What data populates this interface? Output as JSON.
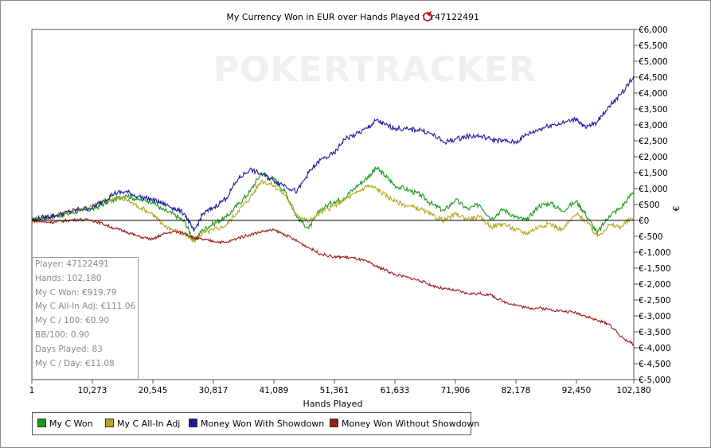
{
  "chart_title": "My Currency Won in EUR over Hands Played for",
  "player_id": "47122491",
  "watermark": "POKERTRACKER",
  "x_axis_label": "Hands Played",
  "y_axis_label": "€",
  "colors": {
    "my_c_won": "#1a9a1a",
    "all_in_adj": "#b5a81e",
    "with_showdown": "#1a1a9e",
    "without_showdown": "#a01818",
    "zero_line": "#000000"
  },
  "stats_box": [
    "Player: 47122491",
    "Hands: 102,180",
    "My C Won: €919.79",
    "My C All-In Adj: €111.06",
    "My C / 100: €0.90",
    "BB/100: 0.90",
    "Days Played: 83",
    "My C / Day: €11.08"
  ],
  "legend": [
    {
      "label": "My C Won",
      "color": "#1a9a1a"
    },
    {
      "label": "My C All-In Adj",
      "color": "#b5a81e"
    },
    {
      "label": "Money Won With Showdown",
      "color": "#1a1a9e"
    },
    {
      "label": "Money Won Without Showdown",
      "color": "#a01818"
    }
  ],
  "chart_data": {
    "type": "line",
    "title": "My Currency Won in EUR over Hands Played for 47122491",
    "xlabel": "Hands Played",
    "ylabel": "€",
    "xlim": [
      1,
      102180
    ],
    "ylim": [
      -5000,
      6000
    ],
    "x_ticks": [
      "1",
      "10,273",
      "20,545",
      "30,817",
      "41,089",
      "51,361",
      "61,633",
      "71,906",
      "82,178",
      "92,450",
      "102,180"
    ],
    "y_ticks": [
      "€6,000",
      "€5,500",
      "€5,000",
      "€4,500",
      "€4,000",
      "€3,500",
      "€3,000",
      "€2,500",
      "€2,000",
      "€1,500",
      "€1,000",
      "€500",
      "€0",
      "€-500",
      "€-1,000",
      "€-1,500",
      "€-2,000",
      "€-2,500",
      "€-3,000",
      "€-3,500",
      "€-4,000",
      "€-4,500",
      "€-5,000"
    ],
    "y_tick_values": [
      6000,
      5500,
      5000,
      4500,
      4000,
      3500,
      3000,
      2500,
      2000,
      1500,
      1000,
      500,
      0,
      -500,
      -1000,
      -1500,
      -2000,
      -2500,
      -3000,
      -3500,
      -4000,
      -4500,
      -5000
    ],
    "grid": false,
    "legend_position": "bottom",
    "series": [
      {
        "name": "My C Won",
        "x": [
          1,
          2000,
          4000,
          6000,
          8000,
          10273,
          12000,
          14000,
          16000,
          18000,
          20545,
          22000,
          24000,
          26000,
          27500,
          29000,
          30817,
          33000,
          35000,
          37000,
          39000,
          41089,
          43000,
          45000,
          47000,
          49000,
          51361,
          53000,
          55000,
          57000,
          58500,
          60000,
          61633,
          64000,
          66000,
          68000,
          70000,
          71906,
          74000,
          76000,
          78000,
          80000,
          82178,
          84000,
          86000,
          88000,
          90000,
          92450,
          94000,
          96000,
          98000,
          100000,
          102180
        ],
        "y": [
          0,
          100,
          150,
          200,
          300,
          350,
          500,
          650,
          800,
          650,
          600,
          350,
          200,
          -50,
          -650,
          -300,
          -100,
          100,
          500,
          900,
          1500,
          1300,
          900,
          100,
          -250,
          350,
          600,
          700,
          1050,
          1350,
          1650,
          1400,
          1100,
          950,
          800,
          500,
          300,
          650,
          350,
          500,
          50,
          350,
          100,
          0,
          450,
          550,
          300,
          600,
          200,
          -400,
          150,
          400,
          919.79
        ]
      },
      {
        "name": "My C All-In Adj",
        "x": [
          1,
          2000,
          4000,
          6000,
          8000,
          10273,
          12000,
          14000,
          16000,
          18000,
          20545,
          22000,
          24000,
          26000,
          27500,
          29000,
          30817,
          33000,
          35000,
          37000,
          39000,
          41089,
          43000,
          45000,
          47000,
          49000,
          51361,
          53000,
          55000,
          57000,
          58500,
          60000,
          61633,
          64000,
          66000,
          68000,
          70000,
          71906,
          74000,
          76000,
          78000,
          80000,
          82178,
          84000,
          86000,
          88000,
          90000,
          92450,
          94000,
          96000,
          98000,
          100000,
          102180
        ],
        "y": [
          0,
          80,
          120,
          250,
          350,
          450,
          600,
          700,
          650,
          450,
          200,
          -100,
          -300,
          -450,
          -650,
          -400,
          -300,
          -150,
          300,
          700,
          1250,
          1100,
          800,
          200,
          -50,
          250,
          450,
          650,
          850,
          1100,
          1000,
          800,
          600,
          450,
          350,
          150,
          0,
          200,
          50,
          100,
          -200,
          -100,
          -300,
          -400,
          -200,
          -100,
          -300,
          200,
          0,
          -500,
          -150,
          -200,
          111.06
        ]
      },
      {
        "name": "Money Won With Showdown",
        "x": [
          1,
          2000,
          4000,
          6000,
          8000,
          10273,
          12000,
          14000,
          16000,
          18000,
          20545,
          22000,
          24000,
          26000,
          27500,
          29000,
          30817,
          33000,
          35000,
          37000,
          39000,
          41089,
          43000,
          45000,
          47000,
          49000,
          51361,
          53000,
          55000,
          57000,
          58500,
          60000,
          61633,
          64000,
          66000,
          68000,
          70000,
          71906,
          74000,
          76000,
          78000,
          80000,
          82178,
          84000,
          86000,
          88000,
          90000,
          92450,
          94000,
          96000,
          98000,
          100000,
          102180
        ],
        "y": [
          0,
          100,
          150,
          250,
          350,
          400,
          600,
          850,
          900,
          750,
          650,
          550,
          400,
          200,
          -350,
          200,
          400,
          700,
          1300,
          1600,
          1450,
          1250,
          1100,
          900,
          1500,
          1900,
          2100,
          2550,
          2700,
          2900,
          3150,
          3000,
          2900,
          2850,
          2850,
          2700,
          2450,
          2550,
          2650,
          2650,
          2550,
          2500,
          2450,
          2700,
          2850,
          3000,
          3050,
          3200,
          2900,
          3100,
          3600,
          3950,
          4550
        ]
      },
      {
        "name": "Money Won Without Showdown",
        "x": [
          1,
          2000,
          4000,
          6000,
          8000,
          10273,
          12000,
          14000,
          16000,
          18000,
          20545,
          22000,
          24000,
          26000,
          27500,
          29000,
          30817,
          33000,
          35000,
          37000,
          39000,
          41089,
          43000,
          45000,
          47000,
          49000,
          51361,
          53000,
          55000,
          57000,
          58500,
          60000,
          61633,
          64000,
          66000,
          68000,
          70000,
          71906,
          74000,
          76000,
          78000,
          80000,
          82178,
          84000,
          86000,
          88000,
          90000,
          92450,
          94000,
          96000,
          98000,
          100000,
          102180
        ],
        "y": [
          0,
          -50,
          -50,
          0,
          30,
          0,
          -100,
          -250,
          -350,
          -500,
          -600,
          -450,
          -350,
          -400,
          -550,
          -600,
          -650,
          -700,
          -550,
          -450,
          -350,
          -300,
          -450,
          -650,
          -850,
          -1050,
          -1150,
          -1150,
          -1200,
          -1300,
          -1450,
          -1550,
          -1700,
          -1800,
          -1900,
          -2050,
          -2150,
          -2200,
          -2300,
          -2300,
          -2350,
          -2550,
          -2650,
          -2750,
          -2750,
          -2800,
          -2850,
          -2900,
          -3000,
          -3150,
          -3250,
          -3650,
          -3900
        ]
      }
    ]
  }
}
